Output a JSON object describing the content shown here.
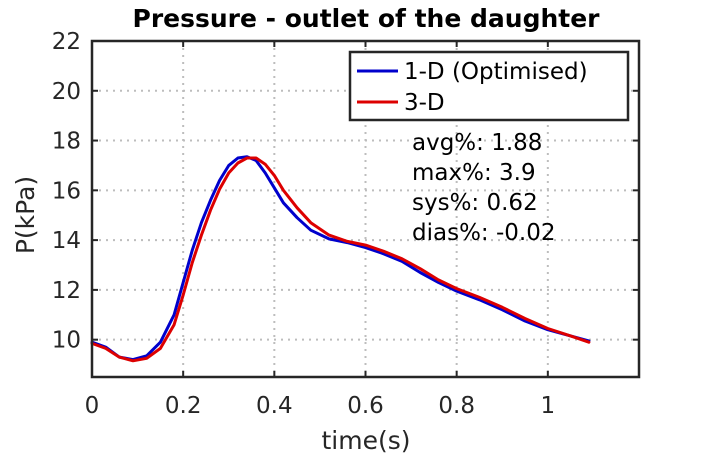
{
  "chart_data": {
    "type": "line",
    "title": "Pressure - outlet of the daughter",
    "xlabel": "time(s)",
    "ylabel": "P(kPa)",
    "xlim": [
      0,
      1.2
    ],
    "ylim": [
      8.5,
      22
    ],
    "xticks": [
      0,
      0.2,
      0.4,
      0.6,
      0.8,
      1
    ],
    "xtick_labels": [
      "0",
      "0.2",
      "0.4",
      "0.6",
      "0.8",
      "1"
    ],
    "yticks": [
      10,
      12,
      14,
      16,
      18,
      20,
      22
    ],
    "ytick_labels": [
      "10",
      "12",
      "14",
      "16",
      "18",
      "20",
      "22"
    ],
    "grid": true,
    "legend_position": "top-right",
    "series": [
      {
        "name": "1-D (Optimised)",
        "color": "#0000cc",
        "x": [
          0,
          0.03,
          0.06,
          0.09,
          0.12,
          0.15,
          0.18,
          0.2,
          0.22,
          0.24,
          0.26,
          0.28,
          0.3,
          0.32,
          0.34,
          0.36,
          0.38,
          0.4,
          0.42,
          0.45,
          0.48,
          0.52,
          0.56,
          0.6,
          0.64,
          0.68,
          0.72,
          0.76,
          0.8,
          0.85,
          0.9,
          0.95,
          1.0,
          1.05,
          1.09
        ],
        "y": [
          9.9,
          9.7,
          9.3,
          9.2,
          9.35,
          9.9,
          11.0,
          12.3,
          13.6,
          14.7,
          15.6,
          16.4,
          17.0,
          17.3,
          17.35,
          17.2,
          16.7,
          16.1,
          15.5,
          14.9,
          14.4,
          14.05,
          13.9,
          13.7,
          13.45,
          13.15,
          12.7,
          12.3,
          11.95,
          11.6,
          11.2,
          10.75,
          10.4,
          10.15,
          9.95
        ]
      },
      {
        "name": "3-D",
        "color": "#dd0000",
        "x": [
          0,
          0.03,
          0.06,
          0.09,
          0.12,
          0.15,
          0.18,
          0.2,
          0.22,
          0.24,
          0.26,
          0.28,
          0.3,
          0.32,
          0.34,
          0.36,
          0.38,
          0.4,
          0.42,
          0.45,
          0.48,
          0.52,
          0.56,
          0.6,
          0.64,
          0.68,
          0.72,
          0.76,
          0.8,
          0.85,
          0.9,
          0.95,
          1.0,
          1.05,
          1.09
        ],
        "y": [
          9.85,
          9.65,
          9.3,
          9.15,
          9.25,
          9.65,
          10.6,
          11.8,
          13.1,
          14.2,
          15.2,
          16.05,
          16.7,
          17.1,
          17.3,
          17.3,
          17.05,
          16.6,
          16.0,
          15.3,
          14.7,
          14.2,
          13.95,
          13.8,
          13.55,
          13.25,
          12.85,
          12.4,
          12.05,
          11.7,
          11.3,
          10.85,
          10.45,
          10.15,
          9.9
        ]
      }
    ],
    "annotations": [
      "avg%: 1.88",
      "max%: 3.9",
      "sys%: 0.62",
      "dias%: -0.02"
    ]
  }
}
